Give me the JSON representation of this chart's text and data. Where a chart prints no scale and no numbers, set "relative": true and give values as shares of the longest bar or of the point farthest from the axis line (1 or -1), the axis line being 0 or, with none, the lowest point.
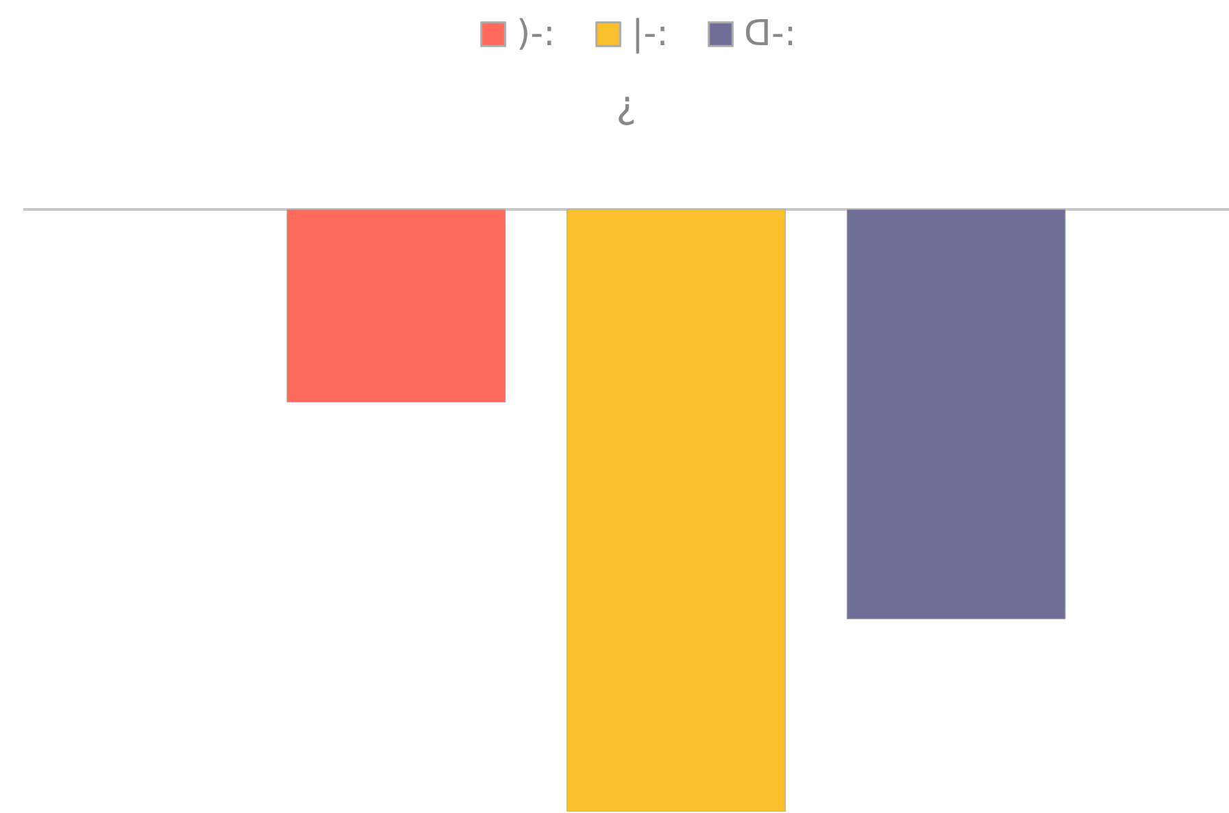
{
  "chart_data": {
    "type": "bar",
    "title": "¿",
    "relative": true,
    "legend": "top",
    "categories": [
      null
    ],
    "series": [
      {
        "name": ")-:",
        "color": "#ff6b5b",
        "values": [
          -0.32
        ]
      },
      {
        "name": "|-:",
        "color": "#fbc02d",
        "values": [
          -1
        ]
      },
      {
        "name": "ᗡ-:",
        "color": "#6e6e96",
        "values": [
          -0.68
        ]
      }
    ]
  }
}
